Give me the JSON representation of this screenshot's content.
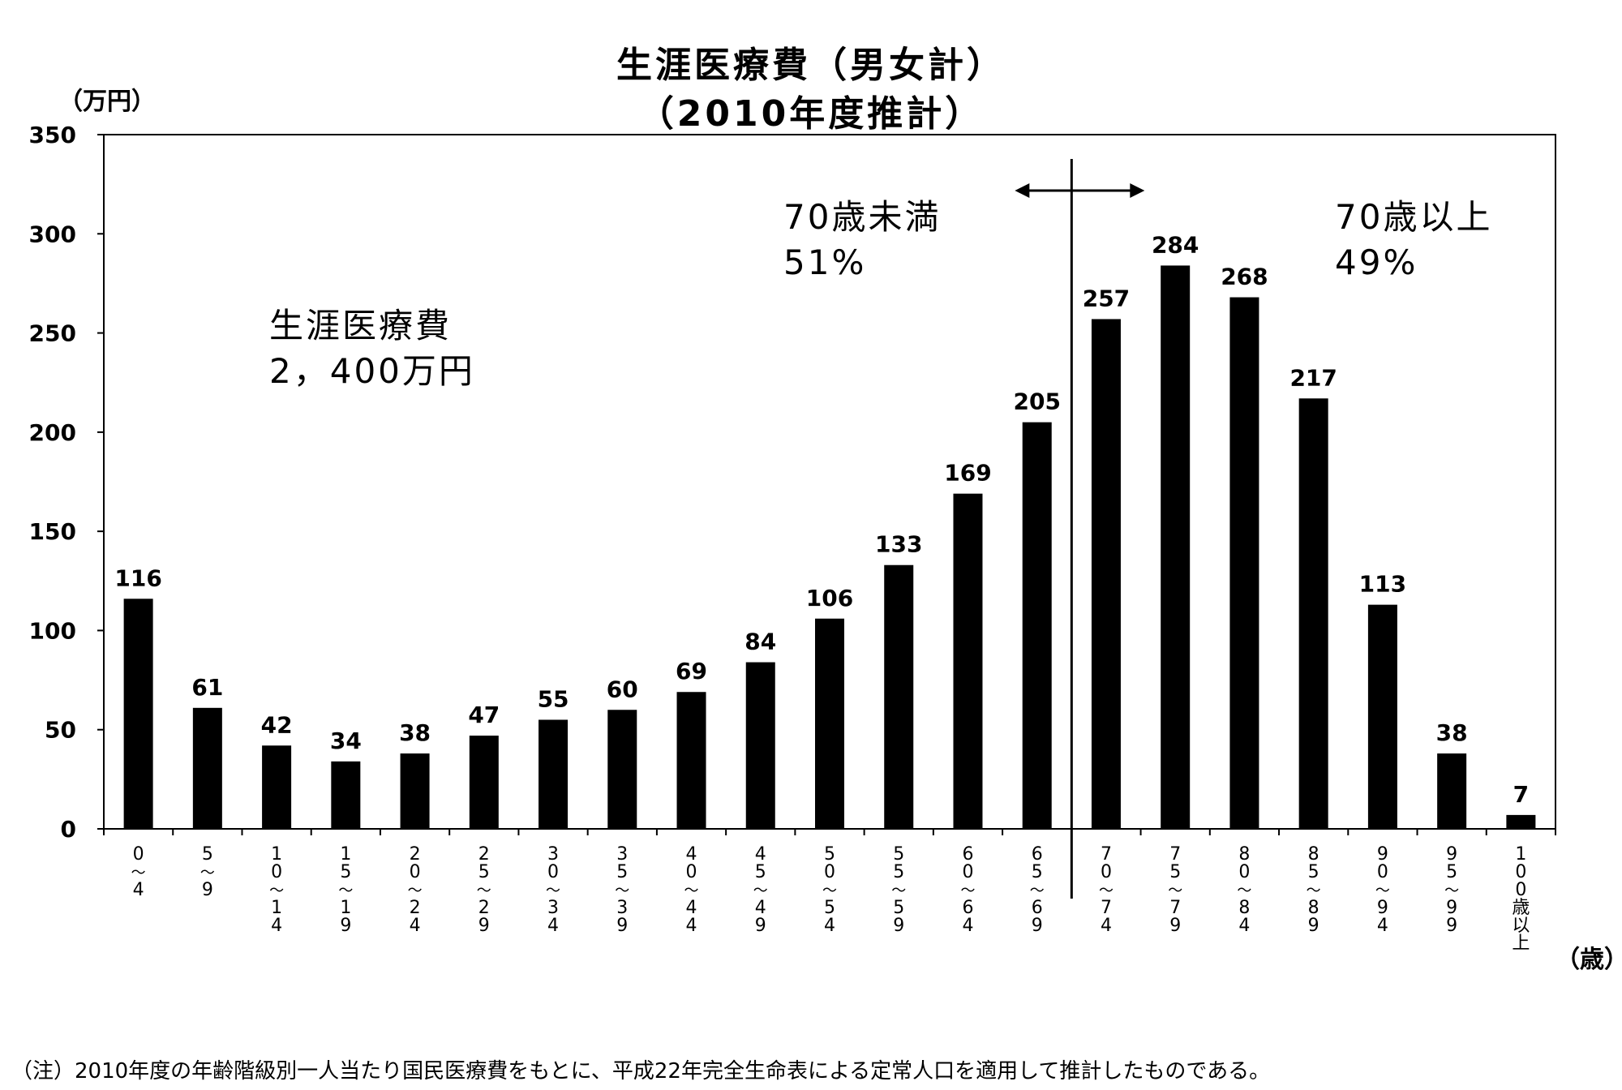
{
  "chart_data": {
    "type": "bar",
    "title_line1": "生涯医療費（男女計）",
    "title_line2": "（2010年度推計）",
    "y_unit": "（万円）",
    "x_unit": "（歳）",
    "ylim": [
      0,
      350
    ],
    "y_ticks": [
      "0",
      "50",
      "100",
      "150",
      "200",
      "250",
      "300",
      "350"
    ],
    "grid": false,
    "categories": [
      [
        "0",
        "〜",
        "4"
      ],
      [
        "5",
        "〜",
        "9"
      ],
      [
        "1",
        "0",
        "〜",
        "1",
        "4"
      ],
      [
        "1",
        "5",
        "〜",
        "1",
        "9"
      ],
      [
        "2",
        "0",
        "〜",
        "2",
        "4"
      ],
      [
        "2",
        "5",
        "〜",
        "2",
        "9"
      ],
      [
        "3",
        "0",
        "〜",
        "3",
        "4"
      ],
      [
        "3",
        "5",
        "〜",
        "3",
        "9"
      ],
      [
        "4",
        "0",
        "〜",
        "4",
        "4"
      ],
      [
        "4",
        "5",
        "〜",
        "4",
        "9"
      ],
      [
        "5",
        "0",
        "〜",
        "5",
        "4"
      ],
      [
        "5",
        "5",
        "〜",
        "5",
        "9"
      ],
      [
        "6",
        "0",
        "〜",
        "6",
        "4"
      ],
      [
        "6",
        "5",
        "〜",
        "6",
        "9"
      ],
      [
        "7",
        "0",
        "〜",
        "7",
        "4"
      ],
      [
        "7",
        "5",
        "〜",
        "7",
        "9"
      ],
      [
        "8",
        "0",
        "〜",
        "8",
        "4"
      ],
      [
        "8",
        "5",
        "〜",
        "8",
        "9"
      ],
      [
        "9",
        "0",
        "〜",
        "9",
        "4"
      ],
      [
        "9",
        "5",
        "〜",
        "9",
        "9"
      ],
      [
        "1",
        "0",
        "0",
        "歳",
        "以",
        "上"
      ]
    ],
    "values": [
      116,
      61,
      42,
      34,
      38,
      47,
      55,
      60,
      69,
      84,
      106,
      133,
      169,
      205,
      257,
      284,
      268,
      217,
      113,
      38,
      7
    ],
    "bar_color": "#000000",
    "divider_after_category": 13,
    "annotations": {
      "total_label": "生涯医療費",
      "total_value": "2，400万円",
      "under70_label": "70歳未満",
      "under70_pct": "51%",
      "over70_label": "70歳以上",
      "over70_pct": "49%"
    }
  },
  "note": "（注）2010年度の年齢階級別一人当たり国民医療費をもとに、平成22年完全生命表による定常人口を適用して推計したものである。"
}
